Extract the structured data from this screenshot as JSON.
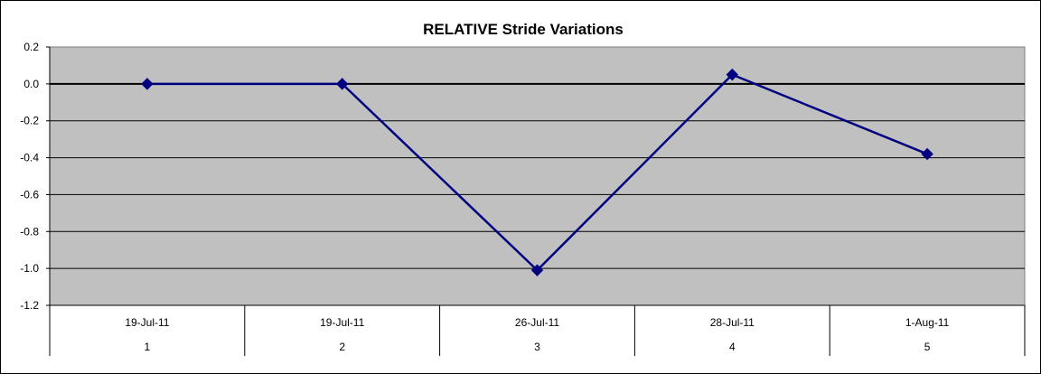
{
  "chart_data": {
    "type": "line",
    "title": "RELATIVE Stride Variations",
    "xlabel": "",
    "ylabel": "",
    "categories": [
      {
        "date": "19-Jul-11",
        "index": "1"
      },
      {
        "date": "19-Jul-11",
        "index": "2"
      },
      {
        "date": "26-Jul-11",
        "index": "3"
      },
      {
        "date": "28-Jul-11",
        "index": "4"
      },
      {
        "date": "1-Aug-11",
        "index": "5"
      }
    ],
    "series": [
      {
        "values": [
          0.0,
          0.0,
          -1.01,
          0.05,
          -0.38
        ]
      }
    ],
    "ylim": [
      -1.2,
      0.2
    ],
    "yticks": [
      "0.2",
      "0.0",
      "-0.2",
      "-0.4",
      "-0.6",
      "-0.8",
      "-1.0",
      "-1.2"
    ],
    "grid": true,
    "legend": "none",
    "colors": {
      "plot_background": "#c0c0c0",
      "line": "#000080",
      "marker": "#000080",
      "gridline": "#000000"
    }
  }
}
